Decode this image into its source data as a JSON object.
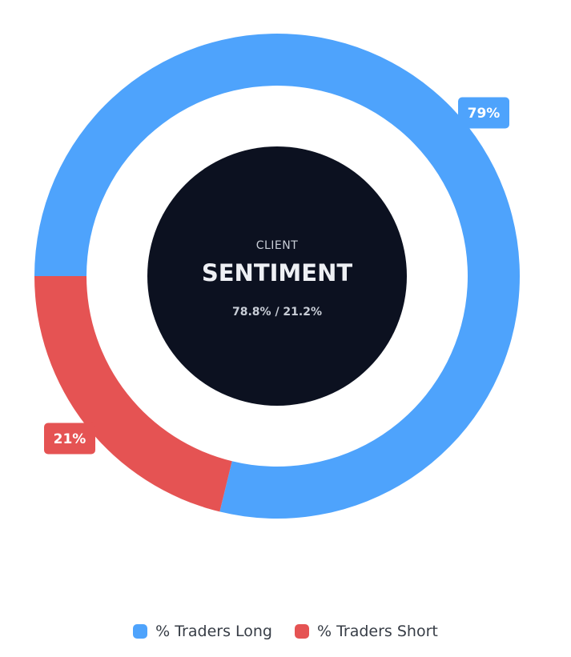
{
  "chart_data": {
    "type": "pie",
    "variant": "donut",
    "categories": [
      "% Traders Long",
      "% Traders Short"
    ],
    "values": [
      78.8,
      21.2
    ],
    "colors": [
      "#4ea3fc",
      "#e55353"
    ],
    "slice_labels": [
      "79%",
      "21%"
    ],
    "legend_placement": "bottom-center"
  },
  "center": {
    "caption": "CLIENT",
    "title": "SENTIMENT",
    "subtitle": "78.8% / 21.2%",
    "background_color": "#0c1120"
  },
  "legend": {
    "items": [
      {
        "label": "% Traders Long",
        "color": "#4ea3fc"
      },
      {
        "label": "% Traders Short",
        "color": "#e55353"
      }
    ]
  }
}
